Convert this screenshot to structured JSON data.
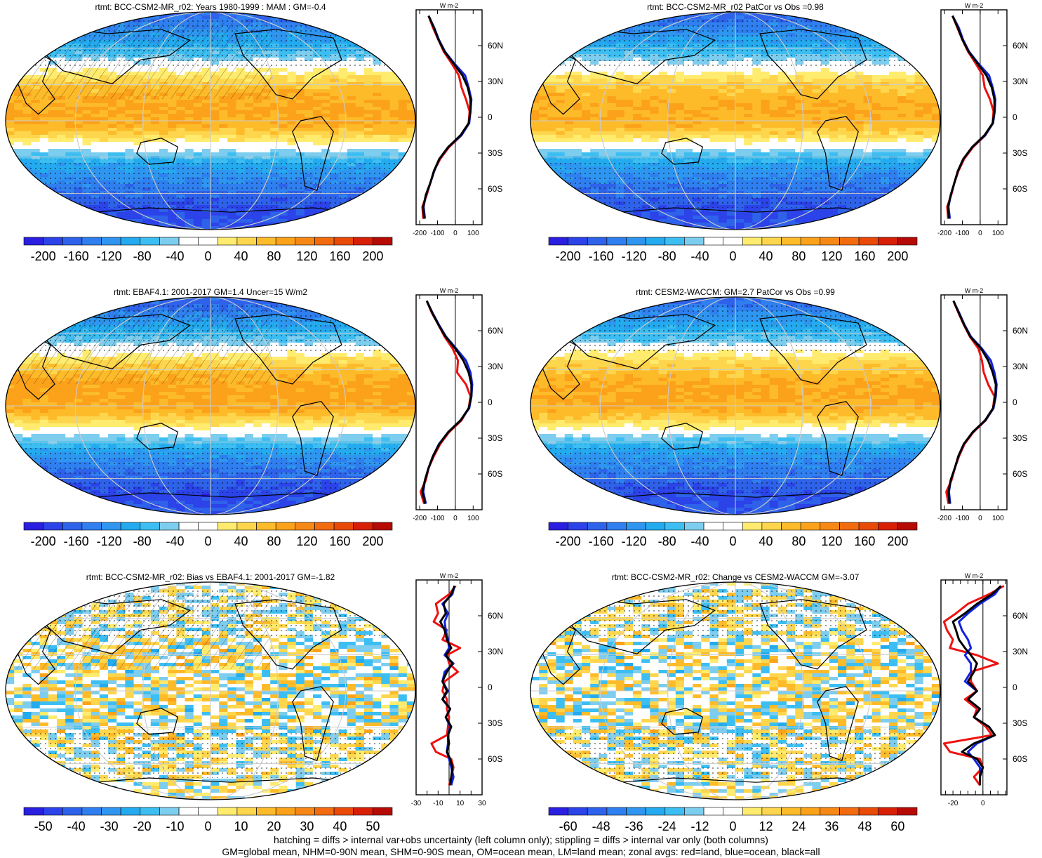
{
  "footer": {
    "line1": "hatching = diffs > internal var+obs uncertainty (left column only); stippling = diffs > internal var only (both columns)",
    "line2": "GM=global mean, NHM=0-90N mean, SHM=0-90S mean, OM=ocean mean, LM=land mean; zonal avgs: red=land, blue=ocean, black=all"
  },
  "colors": {
    "zonal_land": "#ee1111",
    "zonal_ocean": "#1122dd",
    "zonal_all": "#000000",
    "palette": [
      "#2a1fe0",
      "#2b43e8",
      "#2e62ea",
      "#2f7ff0",
      "#2e96f0",
      "#23aaef",
      "#3cbef2",
      "#7dcdef",
      "#ffffff",
      "#ffffff",
      "#ffec6e",
      "#fed64d",
      "#fdbb2a",
      "#fba21a",
      "#f78815",
      "#f26b0e",
      "#ea4a08",
      "#d81f06",
      "#b60a05"
    ]
  },
  "chart_data": [
    {
      "type": "heatmap",
      "title": "rtmt: BCC-CSM2-MR_r02: Years 1980-1999 : MAM : GM=-0.4",
      "colorbar": {
        "min": -220,
        "max": 220,
        "labels": [
          "-200",
          "-160",
          "-120",
          "-80",
          "-40",
          "0",
          "40",
          "80",
          "120",
          "160",
          "200"
        ]
      },
      "zonal": {
        "ylabel": "W m-2",
        "lat_labels": [
          "60N",
          "30N",
          "0",
          "30S",
          "60S"
        ],
        "lat_values": [
          60,
          30,
          0,
          -30,
          -60
        ],
        "xlim": [
          -220,
          150
        ],
        "x_ticks": [
          -200,
          -100,
          0,
          100
        ],
        "x_tick_labels": [
          "-200",
          "-100",
          "0",
          "100"
        ],
        "lat": [
          85,
          75,
          65,
          55,
          45,
          35,
          25,
          15,
          5,
          -5,
          -15,
          -25,
          -35,
          -45,
          -55,
          -65,
          -75,
          -85
        ],
        "all": [
          -150,
          -120,
          -95,
          -60,
          -10,
          40,
          70,
          85,
          85,
          75,
          30,
          -40,
          -90,
          -120,
          -140,
          -165,
          -180,
          -175
        ],
        "land": [
          -150,
          -125,
          -95,
          -65,
          -20,
          20,
          35,
          60,
          80,
          75,
          35,
          -35,
          -85,
          -120,
          -140,
          -160,
          -185,
          -180
        ],
        "ocean": [
          -150,
          -118,
          -92,
          -58,
          -5,
          55,
          75,
          90,
          85,
          78,
          35,
          -40,
          -90,
          -118,
          -140,
          -165,
          -178,
          -170
        ]
      }
    },
    {
      "type": "heatmap",
      "title": "rtmt: BCC-CSM2-MR_r02 PatCor vs Obs =0.98",
      "colorbar": {
        "min": -220,
        "max": 220,
        "labels": [
          "-200",
          "-160",
          "-120",
          "-80",
          "-40",
          "0",
          "40",
          "80",
          "120",
          "160",
          "200"
        ]
      },
      "zonal": {
        "ylabel": "W m-2",
        "lat_labels": [
          "60N",
          "30N",
          "0",
          "30S",
          "60S"
        ],
        "lat_values": [
          60,
          30,
          0,
          -30,
          -60
        ],
        "xlim": [
          -220,
          150
        ],
        "x_ticks": [
          -200,
          -100,
          0,
          100
        ],
        "x_tick_labels": [
          "-200",
          "-100",
          "0",
          "100"
        ],
        "lat": [
          85,
          75,
          65,
          55,
          45,
          35,
          25,
          15,
          5,
          -5,
          -15,
          -25,
          -35,
          -45,
          -55,
          -65,
          -75,
          -85
        ],
        "all": [
          -155,
          -125,
          -100,
          -65,
          -15,
          35,
          65,
          80,
          80,
          70,
          25,
          -45,
          -95,
          -125,
          -145,
          -165,
          -180,
          -175
        ],
        "land": [
          -155,
          -128,
          -100,
          -68,
          -25,
          15,
          25,
          55,
          75,
          70,
          30,
          -40,
          -90,
          -122,
          -145,
          -162,
          -185,
          -180
        ],
        "ocean": [
          -155,
          -120,
          -96,
          -62,
          -10,
          50,
          70,
          85,
          82,
          72,
          28,
          -45,
          -95,
          -125,
          -145,
          -165,
          -178,
          -170
        ]
      }
    },
    {
      "type": "heatmap",
      "title": "rtmt: EBAF4.1: 2001-2017 GM=1.4 Uncer=15 W/m2",
      "colorbar": {
        "min": -220,
        "max": 220,
        "labels": [
          "-200",
          "-160",
          "-120",
          "-80",
          "-40",
          "0",
          "40",
          "80",
          "120",
          "160",
          "200"
        ]
      },
      "zonal": {
        "ylabel": "W m-2",
        "lat_labels": [
          "60N",
          "30N",
          "0",
          "30S",
          "60S"
        ],
        "lat_values": [
          60,
          30,
          0,
          -30,
          -60
        ],
        "xlim": [
          -220,
          150
        ],
        "x_ticks": [
          -200,
          -100,
          0,
          100
        ],
        "x_tick_labels": [
          "-200",
          "-100",
          "0",
          "100"
        ],
        "lat": [
          85,
          75,
          65,
          55,
          45,
          35,
          25,
          15,
          5,
          -5,
          -15,
          -25,
          -35,
          -45,
          -55,
          -65,
          -75,
          -85
        ],
        "all": [
          -160,
          -130,
          -95,
          -55,
          0,
          45,
          75,
          90,
          90,
          75,
          30,
          -40,
          -90,
          -125,
          -150,
          -170,
          -185,
          -170
        ],
        "land": [
          -160,
          -132,
          -95,
          -60,
          -15,
          15,
          10,
          60,
          85,
          75,
          35,
          -35,
          -85,
          -120,
          -150,
          -165,
          -195,
          -175
        ],
        "ocean": [
          -160,
          -128,
          -92,
          -52,
          5,
          60,
          85,
          95,
          90,
          78,
          30,
          -40,
          -92,
          -125,
          -150,
          -170,
          -180,
          -165
        ]
      }
    },
    {
      "type": "heatmap",
      "title": "rtmt: CESM2-WACCM: GM=2.7 PatCor vs Obs =0.99",
      "colorbar": {
        "min": -220,
        "max": 220,
        "labels": [
          "-200",
          "-160",
          "-120",
          "-80",
          "-40",
          "0",
          "40",
          "80",
          "120",
          "160",
          "200"
        ]
      },
      "zonal": {
        "ylabel": "W m-2",
        "lat_labels": [
          "60N",
          "30N",
          "0",
          "30S",
          "60S"
        ],
        "lat_values": [
          60,
          30,
          0,
          -30,
          -60
        ],
        "xlim": [
          -220,
          150
        ],
        "x_ticks": [
          -200,
          -100,
          0,
          100
        ],
        "x_tick_labels": [
          "-200",
          "-100",
          "0",
          "100"
        ],
        "lat": [
          85,
          75,
          65,
          55,
          45,
          35,
          25,
          15,
          5,
          -5,
          -15,
          -25,
          -35,
          -45,
          -55,
          -65,
          -75,
          -85
        ],
        "all": [
          -150,
          -120,
          -90,
          -55,
          5,
          45,
          70,
          88,
          85,
          72,
          28,
          -42,
          -92,
          -122,
          -142,
          -165,
          -178,
          -172
        ],
        "land": [
          -150,
          -122,
          -92,
          -58,
          -10,
          10,
          20,
          45,
          80,
          72,
          32,
          -38,
          -88,
          -118,
          -142,
          -160,
          -190,
          -178
        ],
        "ocean": [
          -150,
          -118,
          -88,
          -52,
          10,
          60,
          80,
          92,
          88,
          75,
          30,
          -42,
          -92,
          -122,
          -142,
          -165,
          -175,
          -168
        ]
      }
    },
    {
      "type": "heatmap",
      "title": "rtmt: BCC-CSM2-MR_r02: Bias vs EBAF4.1: 2001-2017 GM=-1.82",
      "colorbar": {
        "min": -55,
        "max": 55,
        "labels": [
          "-50",
          "-40",
          "-30",
          "-20",
          "-10",
          "0",
          "10",
          "20",
          "30",
          "40",
          "50"
        ]
      },
      "zonal": {
        "ylabel": "W m-2",
        "lat_labels": [
          "60N",
          "30N",
          "0",
          "30S",
          "60S"
        ],
        "lat_values": [
          60,
          30,
          0,
          -30,
          -60
        ],
        "xlim": [
          -30,
          30
        ],
        "x_ticks": [
          -30,
          -20,
          -10,
          0,
          10,
          20,
          30
        ],
        "x_tick_labels": [
          "-30",
          "",
          "-10",
          "",
          "10",
          "",
          "30"
        ],
        "lat": [
          85,
          78,
          70,
          62,
          55,
          48,
          40,
          33,
          27,
          20,
          13,
          5,
          -3,
          -10,
          -18,
          -25,
          -33,
          -40,
          -47,
          -54,
          -60,
          -67,
          -75,
          -82
        ],
        "all": [
          5,
          2,
          -5,
          -3,
          -8,
          -4,
          -2,
          2,
          -3,
          3,
          -2,
          -6,
          -2,
          -6,
          1,
          -3,
          2,
          -1,
          0,
          -2,
          1,
          3,
          2,
          1
        ],
        "land": [
          6,
          0,
          -12,
          -10,
          -14,
          -2,
          -6,
          10,
          -2,
          0,
          8,
          -4,
          -6,
          -2,
          -2,
          0,
          -1,
          -2,
          -16,
          -12,
          2,
          4,
          2,
          0
        ],
        "ocean": [
          5,
          3,
          -6,
          -1,
          -4,
          -3,
          -1,
          0,
          -4,
          4,
          -4,
          -6,
          -1,
          -6,
          1,
          -3,
          1,
          -1,
          -1,
          -2,
          0,
          2,
          4,
          2
        ]
      }
    },
    {
      "type": "heatmap",
      "title": "rtmt: BCC-CSM2-MR_r02: Change vs CESM2-WACCM GM=-3.07",
      "colorbar": {
        "min": -66,
        "max": 66,
        "labels": [
          "-60",
          "-48",
          "-36",
          "-24",
          "-12",
          "0",
          "12",
          "24",
          "36",
          "48",
          "60"
        ]
      },
      "zonal": {
        "ylabel": "W m-2",
        "lat_labels": [
          "60N",
          "30N",
          "0",
          "30S",
          "60S"
        ],
        "lat_values": [
          60,
          30,
          0,
          -30,
          -60
        ],
        "xlim": [
          -28,
          16
        ],
        "x_ticks": [
          -25,
          -20,
          -15,
          -10,
          -5,
          0,
          5,
          10,
          15
        ],
        "x_tick_labels": [
          "",
          "-20",
          "",
          "",
          "",
          "0",
          "",
          "",
          ""
        ],
        "lat": [
          85,
          78,
          70,
          62,
          55,
          48,
          40,
          33,
          27,
          20,
          13,
          5,
          -3,
          -10,
          -18,
          -25,
          -33,
          -40,
          -47,
          -54,
          -60,
          -67,
          -75,
          -82
        ],
        "all": [
          12,
          6,
          -4,
          -12,
          -20,
          -18,
          -16,
          -12,
          -8,
          -4,
          -6,
          -10,
          -4,
          -10,
          -2,
          -6,
          4,
          8,
          -6,
          -14,
          -4,
          0,
          -2,
          -2
        ],
        "land": [
          14,
          4,
          -10,
          -18,
          -26,
          -24,
          -20,
          -22,
          -4,
          10,
          -8,
          -8,
          -4,
          -12,
          -4,
          -6,
          2,
          6,
          -26,
          -22,
          -2,
          0,
          -6,
          -2
        ],
        "ocean": [
          12,
          8,
          -2,
          -10,
          -16,
          -14,
          -10,
          -8,
          -12,
          -8,
          -8,
          -12,
          -4,
          -10,
          -2,
          -6,
          4,
          8,
          -4,
          -10,
          -6,
          -2,
          -2,
          -2
        ]
      }
    }
  ]
}
